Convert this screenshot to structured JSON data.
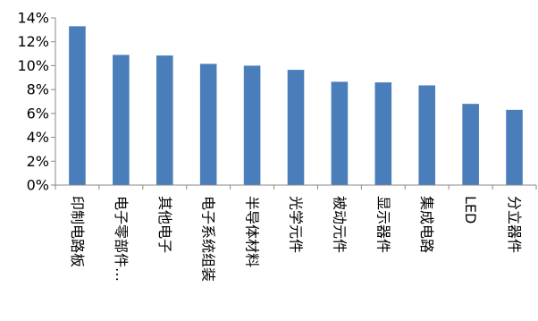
{
  "chart_data": {
    "type": "bar",
    "categories": [
      "印制电路板",
      "电子零部件…",
      "其他电子",
      "电子系统组装",
      "半导体材料",
      "光学元件",
      "被动元件",
      "显示器件",
      "集成电路",
      "LED",
      "分立器件"
    ],
    "values": [
      13.3,
      10.9,
      10.85,
      10.15,
      10.0,
      9.65,
      8.65,
      8.6,
      8.35,
      6.8,
      6.3
    ],
    "ylim": [
      0,
      14
    ],
    "yticks": [
      0,
      2,
      4,
      6,
      8,
      10,
      12,
      14
    ],
    "ytick_format": "percent",
    "bar_color": "#4a7ebb",
    "grid": false,
    "legend": "none",
    "title": "",
    "xlabel": "",
    "ylabel": ""
  }
}
